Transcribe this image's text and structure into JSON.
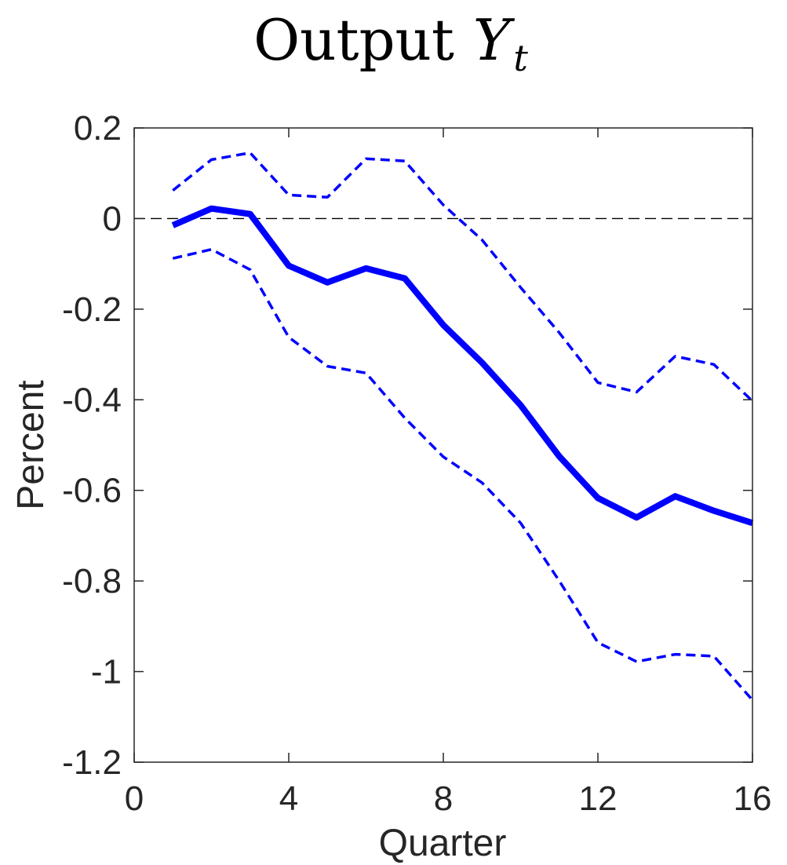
{
  "chart_data": {
    "type": "line",
    "title": {
      "text": "Output",
      "variable": "Y",
      "subscript": "t"
    },
    "xlabel": "Quarter",
    "ylabel": "Percent",
    "xlim": [
      0,
      16
    ],
    "ylim": [
      -1.2,
      0.2
    ],
    "xticks": [
      0,
      4,
      8,
      12,
      16
    ],
    "xtick_labels": [
      "0",
      "4",
      "8",
      "12",
      "16"
    ],
    "yticks": [
      0.2,
      0,
      -0.2,
      -0.4,
      -0.6,
      -0.8,
      -1,
      -1.2
    ],
    "ytick_labels": [
      "0.2",
      "0",
      "-0.2",
      "-0.4",
      "-0.6",
      "-0.8",
      "-1",
      "-1.2"
    ],
    "grid": false,
    "zero_line": true,
    "x": [
      1,
      2,
      3,
      4,
      5,
      6,
      7,
      8,
      9,
      10,
      11,
      12,
      13,
      14,
      15,
      16
    ],
    "series": [
      {
        "role": "point_estimate",
        "style": "solid-thick",
        "color": "#0000ff",
        "values": [
          -0.015,
          0.022,
          0.01,
          -0.104,
          -0.141,
          -0.11,
          -0.132,
          -0.235,
          -0.318,
          -0.412,
          -0.525,
          -0.617,
          -0.66,
          -0.613,
          -0.645,
          -0.672
        ]
      },
      {
        "role": "upper_band",
        "style": "dashed",
        "color": "#0000ff",
        "values": [
          0.062,
          0.13,
          0.145,
          0.052,
          0.047,
          0.132,
          0.127,
          0.03,
          -0.047,
          -0.152,
          -0.252,
          -0.362,
          -0.383,
          -0.304,
          -0.322,
          -0.403
        ]
      },
      {
        "role": "lower_band",
        "style": "dashed",
        "color": "#0000ff",
        "values": [
          -0.088,
          -0.068,
          -0.113,
          -0.262,
          -0.326,
          -0.341,
          -0.44,
          -0.526,
          -0.583,
          -0.672,
          -0.8,
          -0.936,
          -0.978,
          -0.962,
          -0.966,
          -1.063
        ]
      }
    ]
  }
}
